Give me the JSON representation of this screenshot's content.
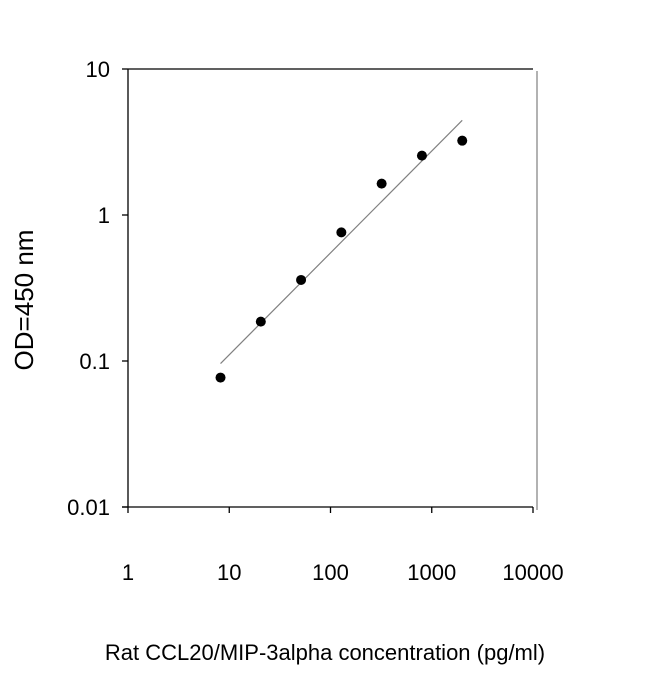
{
  "chart_data": {
    "type": "scatter",
    "title": "",
    "xlabel": "Rat CCL20/MIP-3alpha concentration (pg/ml)",
    "ylabel": "OD=450 nm",
    "xscale": "log",
    "yscale": "log",
    "xlim": [
      1,
      10000
    ],
    "ylim": [
      0.01,
      10
    ],
    "xticks": [
      1,
      10,
      100,
      1000,
      10000
    ],
    "xtick_labels": [
      "1",
      "10",
      "100",
      "1000",
      "10000"
    ],
    "yticks": [
      10,
      1,
      0.1,
      0.01
    ],
    "ytick_labels": [
      "10",
      "1",
      "0.1",
      "0.01"
    ],
    "grid": false,
    "series": [
      {
        "type": "scatter",
        "x": [
          8.2,
          20.5,
          51.2,
          128,
          320,
          800,
          2000
        ],
        "y": [
          0.077,
          0.186,
          0.359,
          0.76,
          1.64,
          2.55,
          3.23
        ],
        "color": "#000000"
      },
      {
        "type": "line",
        "x": [
          8.2,
          2000
        ],
        "y": [
          0.096,
          4.45
        ],
        "color": "#808080"
      }
    ]
  }
}
